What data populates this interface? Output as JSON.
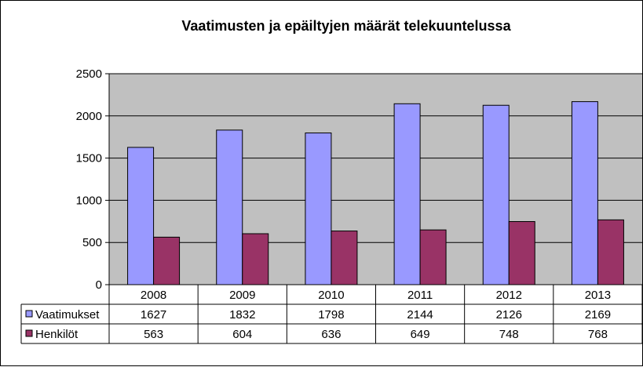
{
  "chart_data": {
    "type": "bar",
    "title": "Vaatimusten ja epäiltyjen määrät telekuuntelussa",
    "categories": [
      "2008",
      "2009",
      "2010",
      "2011",
      "2012",
      "2013"
    ],
    "series": [
      {
        "name": "Vaatimukset",
        "values": [
          1627,
          1832,
          1798,
          2144,
          2126,
          2169
        ],
        "color": "#9999FF"
      },
      {
        "name": "Henkilöt",
        "values": [
          563,
          604,
          636,
          649,
          748,
          768
        ],
        "color": "#993366"
      }
    ],
    "ylim": [
      0,
      2500
    ],
    "yticks": [
      "0",
      "500",
      "1000",
      "1500",
      "2000",
      "2500"
    ],
    "grid": true,
    "plot_background": "#C0C0C0",
    "data_table": true
  }
}
